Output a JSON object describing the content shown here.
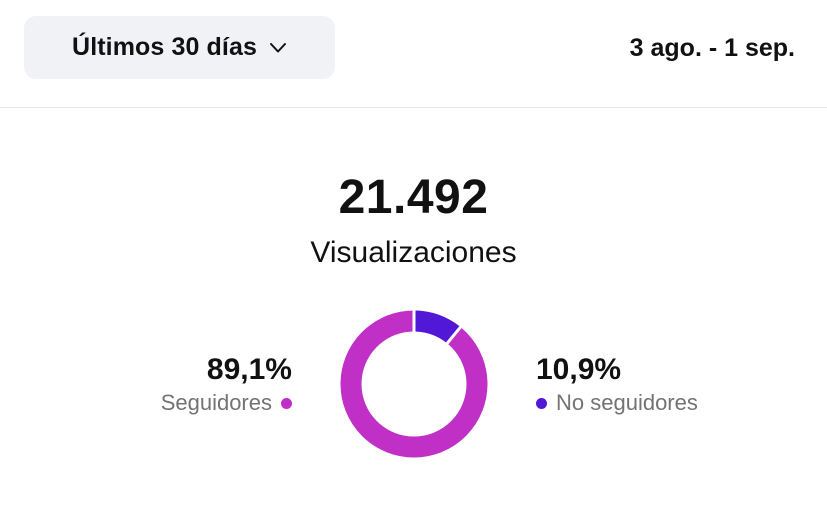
{
  "header": {
    "range_label": "Últimos 30 días",
    "date_range": "3 ago. - 1 sep.",
    "dropdown_icon": "chevron-down-icon"
  },
  "summary": {
    "total": "21.492",
    "label": "Visualizaciones"
  },
  "breakdown": {
    "followers": {
      "percent_text": "89,1%",
      "label": "Seguidores",
      "color": "#c02fc6",
      "fraction": 0.891
    },
    "non_followers": {
      "percent_text": "10,9%",
      "label": "No seguidores",
      "color": "#5218d8",
      "fraction": 0.109
    }
  }
}
